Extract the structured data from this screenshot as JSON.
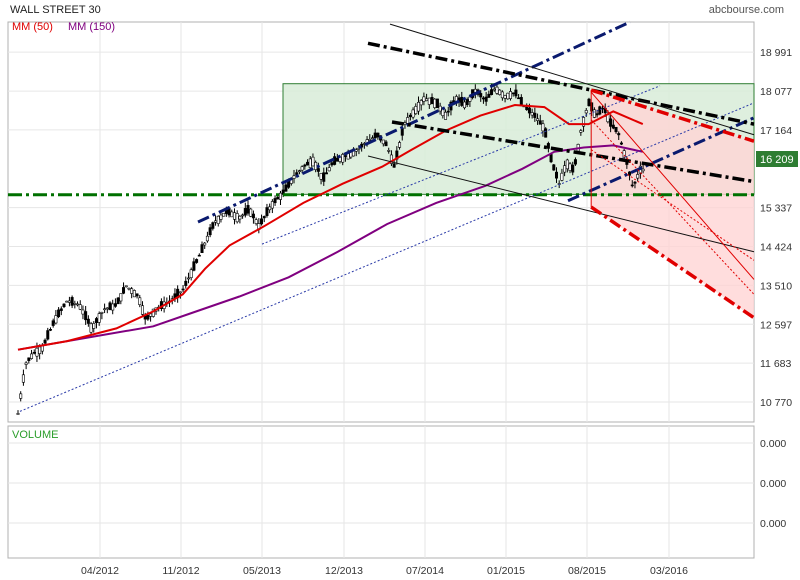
{
  "header": {
    "title": "WALL STREET 30",
    "source": "abcbourse.com"
  },
  "legend": [
    {
      "label": "MM (50)",
      "color": "#e00000"
    },
    {
      "label": "MM (150)",
      "color": "#800080"
    }
  ],
  "volume_panel": {
    "label": "VOLUME",
    "ticks": [
      "0.000",
      "0.000",
      "0.000"
    ]
  },
  "colors": {
    "candle": "#000000",
    "ma50": "#e00000",
    "ma150": "#800080",
    "channel_dark": "#0a1a6e",
    "resistance": "#000000",
    "support": "#007000",
    "green_zone": "#d8ecd8",
    "red_zone": "#ffd4d4",
    "red_line": "#e00000",
    "last_price_badge": "#2e7d32"
  },
  "chart_data": {
    "type": "candlestick",
    "title": "WALL STREET 30",
    "y_ticks": [
      10770,
      11683,
      12597,
      13510,
      14424,
      15337,
      17164,
      18077,
      18991
    ],
    "y_tick_labels": [
      "10 770",
      "11 683",
      "12 597",
      "13 510",
      "14 424",
      "15 337",
      "17 164",
      "18 077",
      "18 991"
    ],
    "last_price": 16209,
    "last_price_label": "16 209",
    "ylim": [
      10300,
      19700
    ],
    "x_tick_labels": [
      "04/2012",
      "11/2012",
      "05/2013",
      "12/2013",
      "07/2014",
      "01/2015",
      "08/2015",
      "03/2016"
    ],
    "price_path": [
      {
        "x": 0.0,
        "y": 10500
      },
      {
        "x": 0.3,
        "y": 11650
      },
      {
        "x": 0.6,
        "y": 11900
      },
      {
        "x": 1.0,
        "y": 12050
      },
      {
        "x": 1.5,
        "y": 12700
      },
      {
        "x": 2.0,
        "y": 13150
      },
      {
        "x": 2.5,
        "y": 13050
      },
      {
        "x": 3.0,
        "y": 12500
      },
      {
        "x": 3.5,
        "y": 12950
      },
      {
        "x": 4.0,
        "y": 13050
      },
      {
        "x": 4.4,
        "y": 13500
      },
      {
        "x": 4.9,
        "y": 13250
      },
      {
        "x": 5.2,
        "y": 12700
      },
      {
        "x": 5.6,
        "y": 12950
      },
      {
        "x": 6.2,
        "y": 13150
      },
      {
        "x": 6.7,
        "y": 13400
      },
      {
        "x": 7.2,
        "y": 14000
      },
      {
        "x": 7.6,
        "y": 14500
      },
      {
        "x": 8.0,
        "y": 15000
      },
      {
        "x": 8.5,
        "y": 15250
      },
      {
        "x": 9.0,
        "y": 15100
      },
      {
        "x": 9.4,
        "y": 15300
      },
      {
        "x": 9.8,
        "y": 14900
      },
      {
        "x": 10.3,
        "y": 15400
      },
      {
        "x": 10.8,
        "y": 15700
      },
      {
        "x": 11.2,
        "y": 16050
      },
      {
        "x": 11.6,
        "y": 16300
      },
      {
        "x": 12.0,
        "y": 16450
      },
      {
        "x": 12.4,
        "y": 16000
      },
      {
        "x": 12.8,
        "y": 16400
      },
      {
        "x": 13.3,
        "y": 16550
      },
      {
        "x": 13.8,
        "y": 16700
      },
      {
        "x": 14.2,
        "y": 16900
      },
      {
        "x": 14.6,
        "y": 17050
      },
      {
        "x": 15.0,
        "y": 16800
      },
      {
        "x": 15.3,
        "y": 16300
      },
      {
        "x": 15.7,
        "y": 17300
      },
      {
        "x": 16.1,
        "y": 17600
      },
      {
        "x": 16.5,
        "y": 17900
      },
      {
        "x": 17.0,
        "y": 17800
      },
      {
        "x": 17.4,
        "y": 17500
      },
      {
        "x": 17.8,
        "y": 17900
      },
      {
        "x": 18.2,
        "y": 17750
      },
      {
        "x": 18.6,
        "y": 18100
      },
      {
        "x": 19.0,
        "y": 17850
      },
      {
        "x": 19.4,
        "y": 18150
      },
      {
        "x": 19.8,
        "y": 17950
      },
      {
        "x": 20.2,
        "y": 18050
      },
      {
        "x": 20.6,
        "y": 17700
      },
      {
        "x": 21.0,
        "y": 17500
      },
      {
        "x": 21.4,
        "y": 17200
      },
      {
        "x": 21.7,
        "y": 16400
      },
      {
        "x": 22.0,
        "y": 15900
      },
      {
        "x": 22.3,
        "y": 16400
      },
      {
        "x": 22.6,
        "y": 16200
      },
      {
        "x": 22.9,
        "y": 17200
      },
      {
        "x": 23.2,
        "y": 17800
      },
      {
        "x": 23.5,
        "y": 17500
      },
      {
        "x": 23.8,
        "y": 17700
      },
      {
        "x": 24.1,
        "y": 17300
      },
      {
        "x": 24.4,
        "y": 17100
      },
      {
        "x": 24.7,
        "y": 16500
      },
      {
        "x": 25.0,
        "y": 15800
      },
      {
        "x": 25.3,
        "y": 16250
      },
      {
        "x": 25.5,
        "y": 16209
      }
    ],
    "ma50_path": [
      {
        "x": 0.0,
        "y": 12000
      },
      {
        "x": 2.0,
        "y": 12200
      },
      {
        "x": 4.0,
        "y": 12500
      },
      {
        "x": 5.5,
        "y": 12900
      },
      {
        "x": 6.7,
        "y": 13300
      },
      {
        "x": 7.6,
        "y": 13900
      },
      {
        "x": 8.6,
        "y": 14450
      },
      {
        "x": 10.0,
        "y": 14900
      },
      {
        "x": 11.6,
        "y": 15450
      },
      {
        "x": 13.2,
        "y": 15900
      },
      {
        "x": 14.8,
        "y": 16300
      },
      {
        "x": 16.0,
        "y": 16700
      },
      {
        "x": 17.4,
        "y": 17150
      },
      {
        "x": 18.8,
        "y": 17500
      },
      {
        "x": 20.2,
        "y": 17750
      },
      {
        "x": 21.4,
        "y": 17700
      },
      {
        "x": 22.4,
        "y": 17300
      },
      {
        "x": 23.2,
        "y": 17300
      },
      {
        "x": 24.2,
        "y": 17600
      },
      {
        "x": 25.4,
        "y": 17300
      }
    ],
    "ma150_path": [
      {
        "x": 0.0,
        "y": 12000
      },
      {
        "x": 3.0,
        "y": 12300
      },
      {
        "x": 5.5,
        "y": 12550
      },
      {
        "x": 7.0,
        "y": 12850
      },
      {
        "x": 9.0,
        "y": 13250
      },
      {
        "x": 11.0,
        "y": 13700
      },
      {
        "x": 13.0,
        "y": 14300
      },
      {
        "x": 15.0,
        "y": 14950
      },
      {
        "x": 17.0,
        "y": 15450
      },
      {
        "x": 19.0,
        "y": 15850
      },
      {
        "x": 20.5,
        "y": 16250
      },
      {
        "x": 21.8,
        "y": 16650
      },
      {
        "x": 23.0,
        "y": 16750
      },
      {
        "x": 24.2,
        "y": 16800
      },
      {
        "x": 25.4,
        "y": 16650
      }
    ]
  }
}
